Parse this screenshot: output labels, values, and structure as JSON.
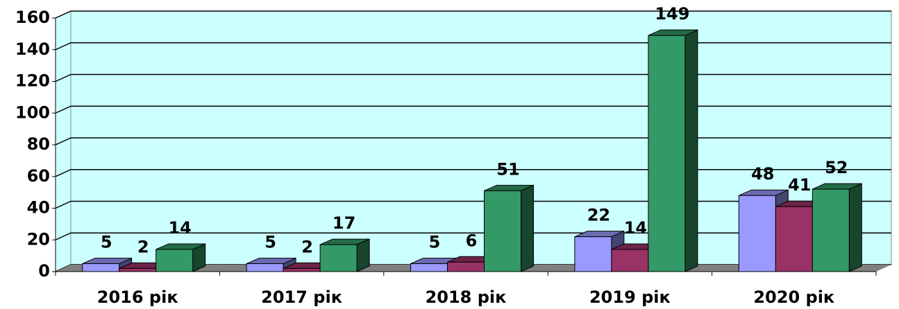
{
  "chart_data": {
    "type": "bar3d",
    "categories": [
      "2016 рік",
      "2017 рік",
      "2018 рік",
      "2019 рік",
      "2020 рік"
    ],
    "series": [
      {
        "color": "#9999ff",
        "values": [
          5,
          5,
          5,
          22,
          48
        ]
      },
      {
        "color": "#993366",
        "values": [
          2,
          2,
          6,
          14,
          41
        ]
      },
      {
        "color": "#339966",
        "values": [
          14,
          17,
          51,
          149,
          52
        ]
      }
    ],
    "ylim": [
      0,
      160
    ],
    "yticks": [
      0,
      20,
      40,
      60,
      80,
      100,
      120,
      140,
      160
    ],
    "grid": true,
    "wall_color": "#ccffff",
    "floor_color": "#808080"
  }
}
